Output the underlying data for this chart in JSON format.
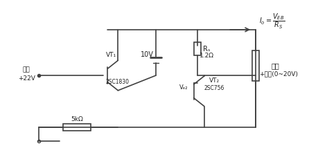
{
  "bg_color": "#f0f0f0",
  "line_color": "#404040",
  "text_color": "#202020",
  "title": "",
  "fig_width": 4.6,
  "fig_height": 2.27,
  "dpi": 100,
  "labels": {
    "input_label": "输入",
    "input_voltage": "+22V",
    "vt1_label": "VT₁",
    "vt1_type": "2SC1830",
    "r1_label": "5kΩ",
    "battery_label": "10V",
    "rs_label": "Rₛ",
    "rs_ohm": "1.2Ω",
    "veb_label": "Vₑ₂",
    "vt2_label": "VT₂",
    "vt2_type": "2SC756",
    "current_label": "Iₒ=",
    "current_formula_num": "Vₑ₂",
    "current_formula_den": "Rₛ",
    "output_label": "+输出(0~20V)",
    "load_label": "负载",
    "neg_terminal": "o"
  }
}
